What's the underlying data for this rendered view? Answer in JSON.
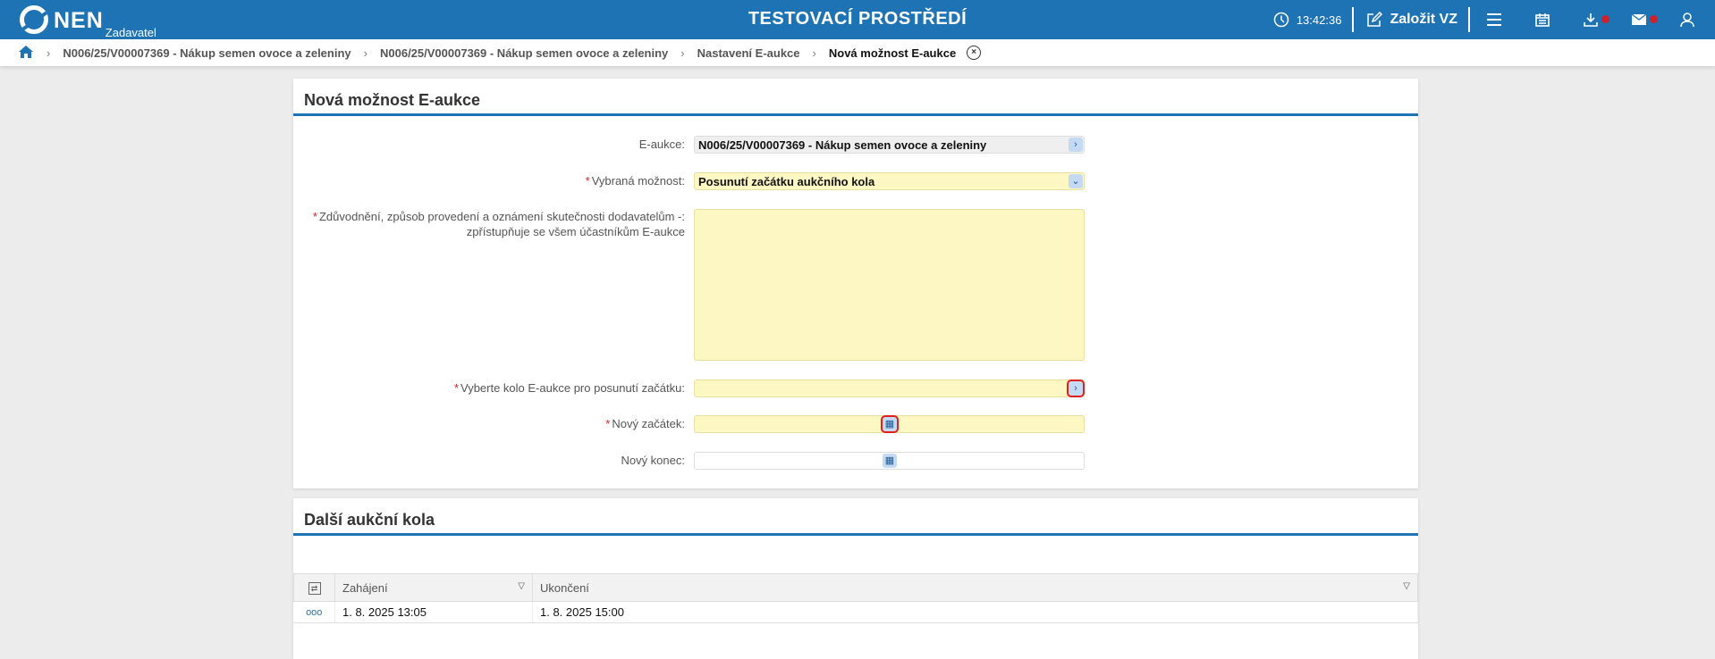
{
  "header": {
    "logo": "NEN",
    "logo_sub": "Zadavatel",
    "environment": "TESTOVACÍ PROSTŘEDÍ",
    "time": "13:42:36",
    "create_label": "Založit VZ",
    "accent": "#1e73b4"
  },
  "breadcrumb": [
    "N006/25/V00007369 - Nákup semen ovoce a zeleniny",
    "N006/25/V00007369 - Nákup semen ovoce a zeleniny",
    "Nastavení E-aukce",
    "Nová možnost E-aukce"
  ],
  "form": {
    "title": "Nová možnost E-aukce",
    "eaukce_label": "E-aukce:",
    "eaukce_value": "N006/25/V00007369 - Nákup semen ovoce a zeleniny",
    "option_label": "Vybraná možnost:",
    "option_value": "Posunutí začátku aukčního kola",
    "reason_label_1": "Zdůvodnění, způsob provedení a oznámení skutečnosti dodavatelům -:",
    "reason_label_2": "zpřístupňuje se všem účastníkům E-aukce",
    "reason_value": "",
    "round_label": "Vyberte kolo E-aukce pro posunutí začátku:",
    "round_value": "",
    "start_label": "Nový začátek:",
    "start_value": "",
    "end_label": "Nový konec:",
    "end_value": ""
  },
  "rounds": {
    "title": "Další aukční kola",
    "columns": [
      "Zahájení",
      "Ukončení"
    ],
    "rows": [
      [
        "1. 8. 2025 13:05",
        "1. 8. 2025 15:00"
      ]
    ]
  }
}
